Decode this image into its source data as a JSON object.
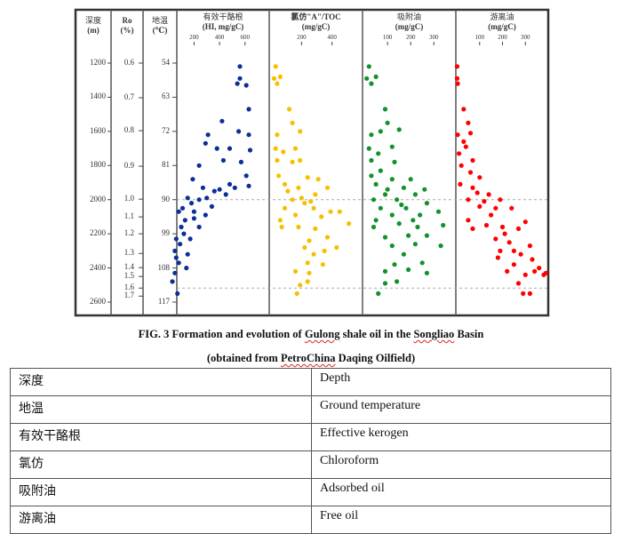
{
  "figure": {
    "headers": {
      "depth": [
        "深度",
        "(m)"
      ],
      "ro": [
        "Ro",
        "(%)"
      ],
      "temp": [
        "地温",
        "(℃)"
      ],
      "hi": [
        "有效干酪根",
        "(HI, mg/gC)"
      ],
      "chloroform": [
        "氯仿\"A\"/TOC",
        "(mg/gC)"
      ],
      "adsorbed": [
        "吸附油",
        "(mg/gC)"
      ],
      "free": [
        "游离油",
        "(mg/gC)"
      ]
    },
    "caption_line1_parts": [
      "FIG. 3 Formation and evolution of ",
      "Gulong",
      " shale oil in the ",
      "Songliao",
      " Basin"
    ],
    "caption_line2_parts": [
      "(obtained from ",
      "PetroChina",
      " Daqing Oilfield)"
    ]
  },
  "chart_data": {
    "type": "scatter",
    "y_axis": {
      "label": "深度 (m)",
      "range": [
        1200,
        2600
      ],
      "ticks": [
        1200,
        1400,
        1600,
        1800,
        2000,
        2200,
        2400,
        2600
      ],
      "inverted": true
    },
    "ro_axis": {
      "label": "Ro (%)",
      "ticks": [
        {
          "ro": "0.6",
          "depth": 1200
        },
        {
          "ro": "0.7",
          "depth": 1403
        },
        {
          "ro": "0.8",
          "depth": 1596
        },
        {
          "ro": "0.9",
          "depth": 1804
        },
        {
          "ro": "1.0",
          "depth": 1997
        },
        {
          "ro": "1.1",
          "depth": 2101
        },
        {
          "ro": "1.2",
          "depth": 2200
        },
        {
          "ro": "1.3",
          "depth": 2315
        },
        {
          "ro": "1.4",
          "depth": 2398
        },
        {
          "ro": "1.5",
          "depth": 2450
        },
        {
          "ro": "1.6",
          "depth": 2518
        },
        {
          "ro": "1.7",
          "depth": 2565
        }
      ]
    },
    "temp_axis": {
      "label": "地温 (℃)",
      "ticks": [
        "54",
        "63",
        "72",
        "81",
        "90",
        "99",
        "108",
        "117"
      ]
    },
    "reference_lines_depth": [
      2000,
      2518
    ],
    "panels": [
      {
        "key": "hi",
        "name": "有效干酪根 (HI, mg/gC)",
        "color": "#0a2f96",
        "xlim": [
          65,
          790
        ],
        "xticks": [
          "200",
          "400",
          "600"
        ],
        "points": [
          [
            560,
            1220
          ],
          [
            560,
            1290
          ],
          [
            540,
            1320
          ],
          [
            610,
            1330
          ],
          [
            630,
            1470
          ],
          [
            420,
            1540
          ],
          [
            310,
            1620
          ],
          [
            380,
            1700
          ],
          [
            480,
            1700
          ],
          [
            630,
            1620
          ],
          [
            550,
            1600
          ],
          [
            640,
            1710
          ],
          [
            290,
            1670
          ],
          [
            430,
            1770
          ],
          [
            570,
            1780
          ],
          [
            240,
            1800
          ],
          [
            610,
            1860
          ],
          [
            630,
            1920
          ],
          [
            190,
            1880
          ],
          [
            480,
            1910
          ],
          [
            360,
            1950
          ],
          [
            270,
            1930
          ],
          [
            150,
            1990
          ],
          [
            240,
            2000
          ],
          [
            80,
            2070
          ],
          [
            200,
            2070
          ],
          [
            290,
            2090
          ],
          [
            100,
            2160
          ],
          [
            240,
            2160
          ],
          [
            60,
            2230
          ],
          [
            170,
            2230
          ],
          [
            50,
            2300
          ],
          [
            150,
            2320
          ],
          [
            80,
            2370
          ],
          [
            140,
            2400
          ],
          [
            50,
            2430
          ],
          [
            30,
            2480
          ],
          [
            70,
            2550
          ],
          [
            340,
            2040
          ],
          [
            450,
            1970
          ],
          [
            520,
            1930
          ],
          [
            130,
            2120
          ],
          [
            180,
            2020
          ],
          [
            120,
            2200
          ],
          [
            90,
            2260
          ],
          [
            200,
            2110
          ],
          [
            60,
            2340
          ],
          [
            300,
            1990
          ],
          [
            400,
            1940
          ],
          [
            110,
            2050
          ]
        ]
      },
      {
        "key": "chloroform",
        "name": "氯仿\"A\"/TOC (mg/gC)",
        "color": "#f5c000",
        "xlim": [
          -12,
          600
        ],
        "xticks": [
          "200",
          "400"
        ],
        "points": [
          [
            30,
            1220
          ],
          [
            20,
            1290
          ],
          [
            60,
            1280
          ],
          [
            40,
            1320
          ],
          [
            120,
            1470
          ],
          [
            140,
            1550
          ],
          [
            190,
            1600
          ],
          [
            40,
            1620
          ],
          [
            160,
            1700
          ],
          [
            30,
            1700
          ],
          [
            80,
            1720
          ],
          [
            190,
            1770
          ],
          [
            40,
            1770
          ],
          [
            140,
            1780
          ],
          [
            50,
            1860
          ],
          [
            240,
            1870
          ],
          [
            310,
            1880
          ],
          [
            90,
            1910
          ],
          [
            180,
            1930
          ],
          [
            370,
            1930
          ],
          [
            290,
            1970
          ],
          [
            140,
            2000
          ],
          [
            220,
            2020
          ],
          [
            90,
            2050
          ],
          [
            280,
            2050
          ],
          [
            390,
            2070
          ],
          [
            450,
            2070
          ],
          [
            160,
            2090
          ],
          [
            60,
            2120
          ],
          [
            510,
            2140
          ],
          [
            180,
            2160
          ],
          [
            290,
            2170
          ],
          [
            70,
            2160
          ],
          [
            370,
            2220
          ],
          [
            220,
            2280
          ],
          [
            430,
            2280
          ],
          [
            280,
            2320
          ],
          [
            350,
            2300
          ],
          [
            240,
            2370
          ],
          [
            340,
            2380
          ],
          [
            160,
            2420
          ],
          [
            250,
            2430
          ],
          [
            240,
            2480
          ],
          [
            190,
            2500
          ],
          [
            170,
            2550
          ],
          [
            200,
            1990
          ],
          [
            260,
            2010
          ],
          [
            110,
            1950
          ],
          [
            330,
            2100
          ],
          [
            250,
            2240
          ]
        ]
      },
      {
        "key": "adsorbed",
        "name": "吸附油 (mg/gC)",
        "color": "#13912a",
        "xlim": [
          -8,
          395
        ],
        "xticks": [
          "100",
          "200",
          "300"
        ],
        "points": [
          [
            20,
            1220
          ],
          [
            10,
            1290
          ],
          [
            50,
            1280
          ],
          [
            30,
            1320
          ],
          [
            90,
            1470
          ],
          [
            100,
            1550
          ],
          [
            150,
            1590
          ],
          [
            30,
            1620
          ],
          [
            70,
            1600
          ],
          [
            120,
            1690
          ],
          [
            20,
            1700
          ],
          [
            60,
            1730
          ],
          [
            130,
            1780
          ],
          [
            30,
            1770
          ],
          [
            70,
            1830
          ],
          [
            30,
            1860
          ],
          [
            120,
            1880
          ],
          [
            200,
            1880
          ],
          [
            50,
            1910
          ],
          [
            170,
            1930
          ],
          [
            260,
            1940
          ],
          [
            90,
            1970
          ],
          [
            220,
            1970
          ],
          [
            40,
            2000
          ],
          [
            140,
            2000
          ],
          [
            270,
            2020
          ],
          [
            70,
            2050
          ],
          [
            180,
            2050
          ],
          [
            320,
            2070
          ],
          [
            120,
            2090
          ],
          [
            240,
            2090
          ],
          [
            50,
            2120
          ],
          [
            150,
            2140
          ],
          [
            340,
            2150
          ],
          [
            40,
            2160
          ],
          [
            230,
            2160
          ],
          [
            90,
            2220
          ],
          [
            190,
            2210
          ],
          [
            270,
            2210
          ],
          [
            120,
            2270
          ],
          [
            220,
            2260
          ],
          [
            330,
            2270
          ],
          [
            170,
            2320
          ],
          [
            250,
            2370
          ],
          [
            130,
            2380
          ],
          [
            190,
            2410
          ],
          [
            90,
            2420
          ],
          [
            270,
            2430
          ],
          [
            140,
            2480
          ],
          [
            90,
            2490
          ],
          [
            60,
            2550
          ],
          [
            160,
            2030
          ],
          [
            100,
            1940
          ],
          [
            210,
            2120
          ]
        ]
      },
      {
        "key": "free",
        "name": "游离油 (mg/gC)",
        "color": "#ff0000",
        "xlim": [
          -4,
          400
        ],
        "xticks": [
          "100",
          "200",
          "300"
        ],
        "points": [
          [
            2,
            1220
          ],
          [
            2,
            1290
          ],
          [
            4,
            1320
          ],
          [
            30,
            1470
          ],
          [
            50,
            1550
          ],
          [
            4,
            1620
          ],
          [
            60,
            1610
          ],
          [
            40,
            1690
          ],
          [
            10,
            1730
          ],
          [
            70,
            1770
          ],
          [
            20,
            1800
          ],
          [
            100,
            1870
          ],
          [
            15,
            1910
          ],
          [
            70,
            1930
          ],
          [
            140,
            1970
          ],
          [
            50,
            2000
          ],
          [
            190,
            2000
          ],
          [
            100,
            2040
          ],
          [
            170,
            2050
          ],
          [
            50,
            2120
          ],
          [
            240,
            2050
          ],
          [
            130,
            2150
          ],
          [
            200,
            2160
          ],
          [
            300,
            2130
          ],
          [
            70,
            2170
          ],
          [
            270,
            2170
          ],
          [
            170,
            2230
          ],
          [
            230,
            2250
          ],
          [
            320,
            2270
          ],
          [
            190,
            2300
          ],
          [
            280,
            2320
          ],
          [
            180,
            2340
          ],
          [
            330,
            2350
          ],
          [
            250,
            2380
          ],
          [
            360,
            2400
          ],
          [
            220,
            2420
          ],
          [
            300,
            2440
          ],
          [
            380,
            2440
          ],
          [
            270,
            2490
          ],
          [
            290,
            2550
          ],
          [
            320,
            2550
          ],
          [
            120,
            2010
          ],
          [
            90,
            1960
          ],
          [
            150,
            2090
          ],
          [
            210,
            2200
          ],
          [
            250,
            2300
          ],
          [
            340,
            2420
          ],
          [
            390,
            2430
          ],
          [
            30,
            1660
          ],
          [
            60,
            1840
          ]
        ]
      }
    ]
  },
  "table": {
    "rows": [
      [
        "深度",
        "Depth"
      ],
      [
        "地温",
        "Ground temperature"
      ],
      [
        "有效干酪根",
        "Effective kerogen"
      ],
      [
        "氯仿",
        "Chloroform"
      ],
      [
        "吸附油",
        "Adsorbed oil"
      ],
      [
        "游离油",
        "Free oil"
      ]
    ]
  }
}
